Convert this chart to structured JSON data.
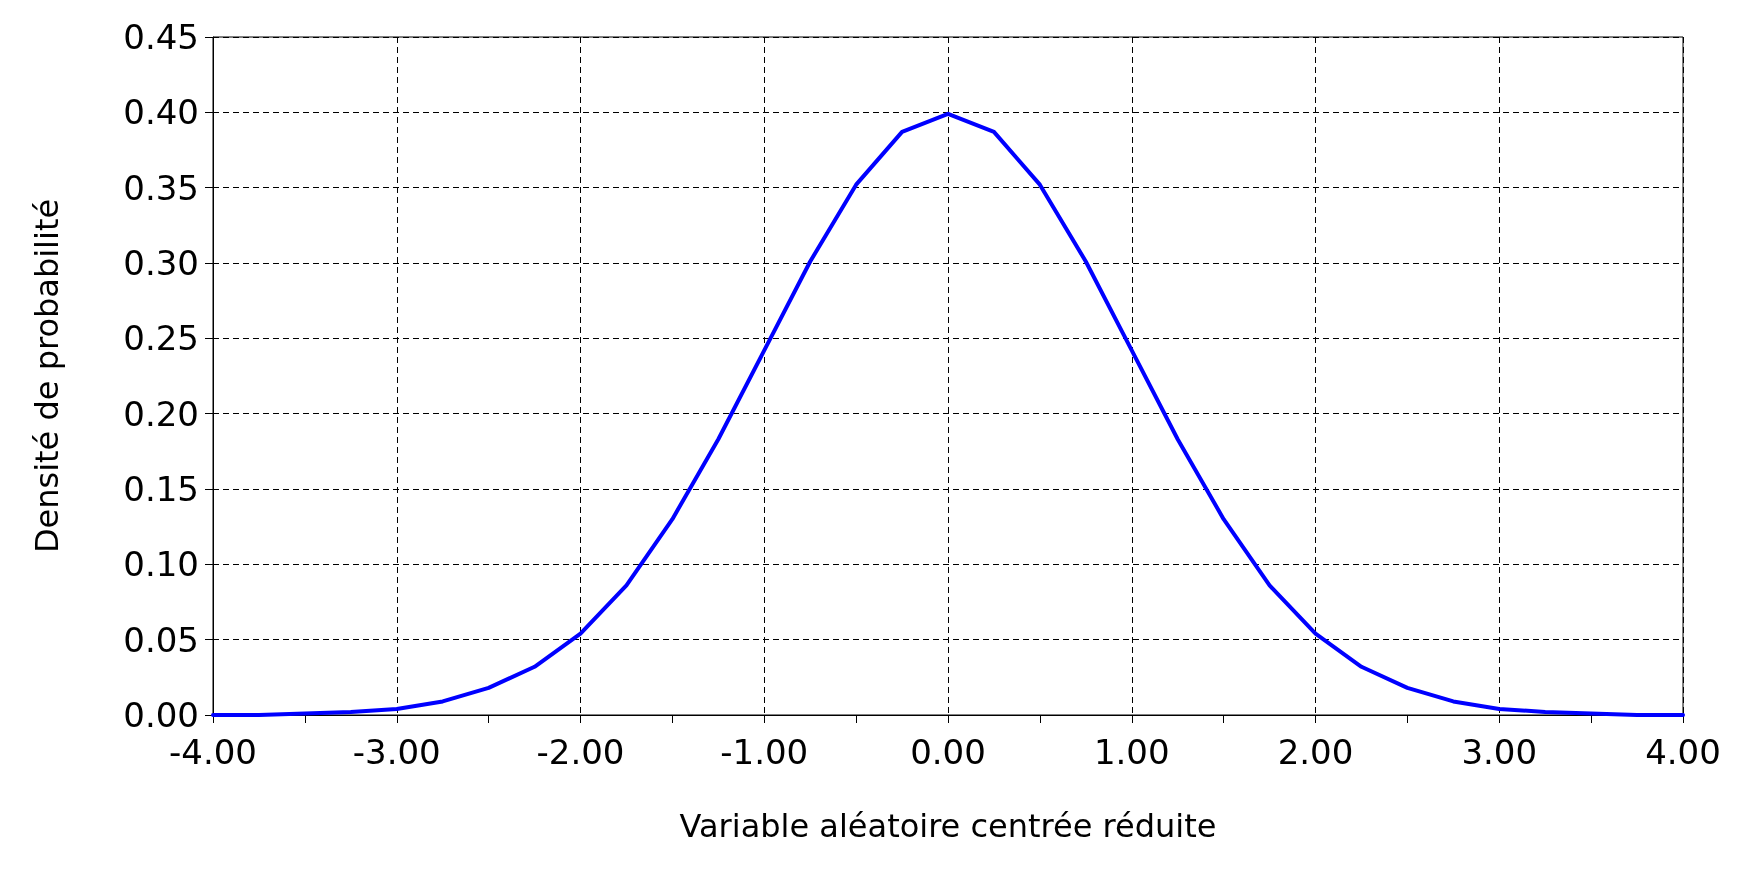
{
  "chart_data": {
    "type": "line",
    "xlabel": "Variable aléatoire centrée réduite",
    "ylabel": "Densité de probabilité",
    "x": [
      -4,
      -3.75,
      -3.5,
      -3.25,
      -3,
      -2.75,
      -2.5,
      -2.25,
      -2,
      -1.75,
      -1.5,
      -1.25,
      -1,
      -0.75,
      -0.5,
      -0.25,
      0,
      0.25,
      0.5,
      0.75,
      1,
      1.25,
      1.5,
      1.75,
      2,
      2.25,
      2.5,
      2.75,
      3,
      3.25,
      3.5,
      3.75,
      4
    ],
    "series": [
      {
        "color": "#0000ff",
        "values": [
          0.0,
          0.0,
          0.001,
          0.002,
          0.004,
          0.009,
          0.018,
          0.032,
          0.054,
          0.086,
          0.13,
          0.183,
          0.242,
          0.301,
          0.352,
          0.387,
          0.399,
          0.387,
          0.352,
          0.301,
          0.242,
          0.183,
          0.13,
          0.086,
          0.054,
          0.032,
          0.018,
          0.009,
          0.004,
          0.002,
          0.001,
          0.0,
          0.0
        ]
      }
    ],
    "xlim": [
      -4,
      4
    ],
    "xticks": [
      {
        "value": -4,
        "label": "-4.00"
      },
      {
        "value": -3.5,
        "label": null
      },
      {
        "value": -3,
        "label": "-3.00"
      },
      {
        "value": -2.5,
        "label": null
      },
      {
        "value": -2,
        "label": "-2.00"
      },
      {
        "value": -1.5,
        "label": null
      },
      {
        "value": -1,
        "label": "-1.00"
      },
      {
        "value": -0.5,
        "label": null
      },
      {
        "value": 0,
        "label": "0.00"
      },
      {
        "value": 0.5,
        "label": null
      },
      {
        "value": 1,
        "label": "1.00"
      },
      {
        "value": 1.5,
        "label": null
      },
      {
        "value": 2,
        "label": "2.00"
      },
      {
        "value": 2.5,
        "label": null
      },
      {
        "value": 3,
        "label": "3.00"
      },
      {
        "value": 3.5,
        "label": null
      },
      {
        "value": 4,
        "label": "4.00"
      }
    ],
    "ylim": [
      0,
      0.45
    ],
    "yticks": [
      {
        "value": 0,
        "label": "0.00"
      },
      {
        "value": 0.05,
        "label": "0.05"
      },
      {
        "value": 0.1,
        "label": "0.10"
      },
      {
        "value": 0.15,
        "label": "0.15"
      },
      {
        "value": 0.2,
        "label": "0.20"
      },
      {
        "value": 0.25,
        "label": "0.25"
      },
      {
        "value": 0.3,
        "label": "0.30"
      },
      {
        "value": 0.35,
        "label": "0.35"
      },
      {
        "value": 0.4,
        "label": "0.40"
      },
      {
        "value": 0.45,
        "label": "0.45"
      }
    ],
    "grid": true,
    "marker": "none",
    "line_style": "solid"
  }
}
